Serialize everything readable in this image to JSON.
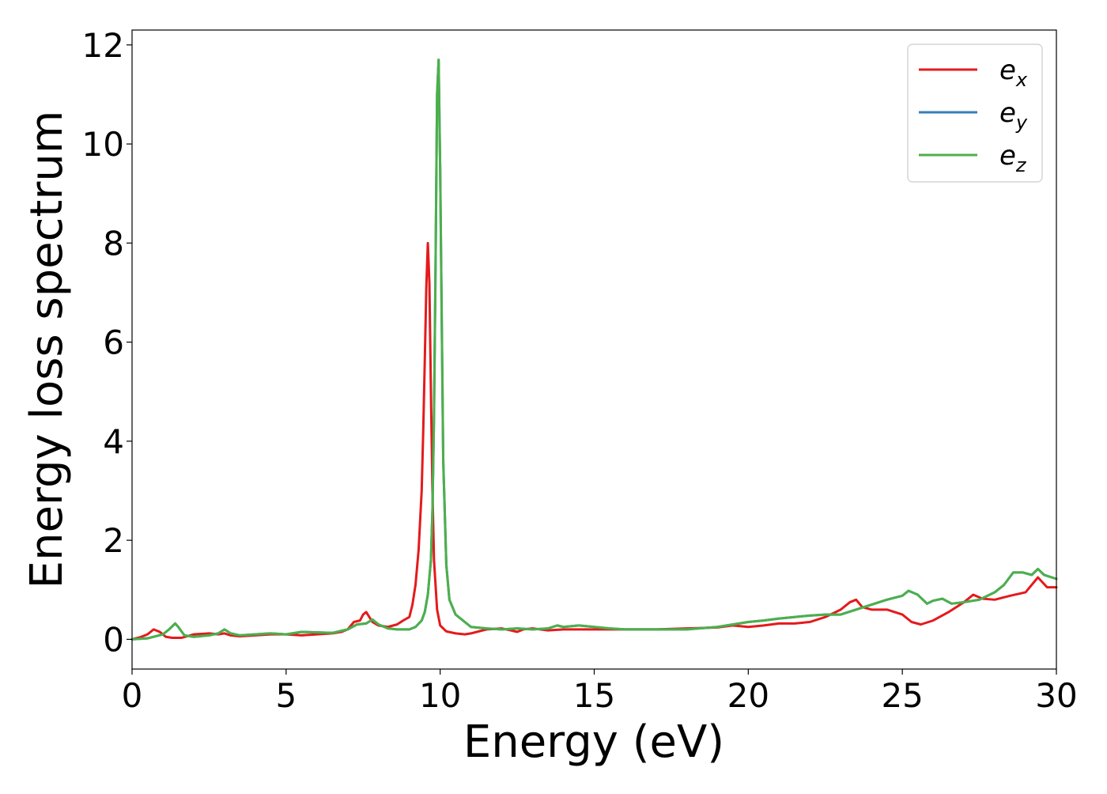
{
  "chart_data": {
    "type": "line",
    "title": "",
    "xlabel": "Energy (eV)",
    "ylabel": "Energy loss spectrum",
    "xlim": [
      0,
      30
    ],
    "ylim": [
      -0.6,
      12.3
    ],
    "xticks": [
      0,
      5,
      10,
      15,
      20,
      25,
      30
    ],
    "yticks": [
      0,
      2,
      4,
      6,
      8,
      10,
      12
    ],
    "xtick_labels": [
      "0",
      "5",
      "10",
      "15",
      "20",
      "25",
      "30"
    ],
    "ytick_labels": [
      "0",
      "2",
      "4",
      "6",
      "8",
      "10",
      "12"
    ],
    "grid": false,
    "legend_position": "top-right",
    "series": [
      {
        "name": "e_x",
        "label_main": "e",
        "label_sub": "x",
        "color": "#e41a1c",
        "x": [
          0,
          0.3,
          0.5,
          0.7,
          0.9,
          1.1,
          1.3,
          1.6,
          2.0,
          2.5,
          2.8,
          3.0,
          3.2,
          3.5,
          4.0,
          4.5,
          5.0,
          5.5,
          6.0,
          6.5,
          6.8,
          7.0,
          7.2,
          7.4,
          7.5,
          7.6,
          7.8,
          8.0,
          8.3,
          8.6,
          8.8,
          9.0,
          9.1,
          9.2,
          9.3,
          9.4,
          9.45,
          9.5,
          9.55,
          9.6,
          9.65,
          9.7,
          9.75,
          9.8,
          9.9,
          10.0,
          10.2,
          10.5,
          10.8,
          11.0,
          11.5,
          12.0,
          12.3,
          12.5,
          12.7,
          13.0,
          13.5,
          14.0,
          15.0,
          16.0,
          17.0,
          18.0,
          19.0,
          19.5,
          20.0,
          20.5,
          21.0,
          21.5,
          22.0,
          22.5,
          23.0,
          23.3,
          23.5,
          23.7,
          24.0,
          24.5,
          25.0,
          25.3,
          25.6,
          26.0,
          26.5,
          27.0,
          27.3,
          27.6,
          28.0,
          28.5,
          29.0,
          29.4,
          29.7,
          30.0
        ],
        "values": [
          0,
          0.05,
          0.1,
          0.2,
          0.15,
          0.05,
          0.03,
          0.03,
          0.1,
          0.12,
          0.1,
          0.12,
          0.08,
          0.06,
          0.08,
          0.1,
          0.1,
          0.08,
          0.1,
          0.12,
          0.15,
          0.2,
          0.35,
          0.38,
          0.5,
          0.55,
          0.35,
          0.28,
          0.25,
          0.3,
          0.38,
          0.45,
          0.7,
          1.1,
          1.8,
          3.0,
          4.2,
          5.6,
          7.1,
          8.0,
          7.2,
          5.0,
          3.0,
          1.6,
          0.6,
          0.28,
          0.16,
          0.12,
          0.1,
          0.12,
          0.2,
          0.22,
          0.18,
          0.15,
          0.2,
          0.22,
          0.18,
          0.2,
          0.2,
          0.2,
          0.2,
          0.22,
          0.24,
          0.28,
          0.25,
          0.28,
          0.32,
          0.32,
          0.35,
          0.45,
          0.6,
          0.75,
          0.8,
          0.65,
          0.6,
          0.6,
          0.5,
          0.35,
          0.3,
          0.38,
          0.55,
          0.75,
          0.9,
          0.82,
          0.8,
          0.88,
          0.95,
          1.25,
          1.05,
          1.05
        ]
      },
      {
        "name": "e_y",
        "label_main": "e",
        "label_sub": "y",
        "color": "#377eb8",
        "x": [
          0,
          0.5,
          1.0,
          1.2,
          1.4,
          1.5,
          1.7,
          2.0,
          2.5,
          2.8,
          3.0,
          3.2,
          3.5,
          4.0,
          4.5,
          5.0,
          5.5,
          6.0,
          6.5,
          7.0,
          7.3,
          7.6,
          7.8,
          8.0,
          8.3,
          8.6,
          9.0,
          9.2,
          9.4,
          9.5,
          9.6,
          9.7,
          9.75,
          9.8,
          9.85,
          9.9,
          9.95,
          10.0,
          10.05,
          10.1,
          10.2,
          10.3,
          10.5,
          10.8,
          11.0,
          11.5,
          12.0,
          12.5,
          13.0,
          13.5,
          13.8,
          14.0,
          14.5,
          15.0,
          15.5,
          16.0,
          16.5,
          17.0,
          18.0,
          19.0,
          20.0,
          20.5,
          21.0,
          21.5,
          22.0,
          22.5,
          23.0,
          23.5,
          24.0,
          24.5,
          25.0,
          25.2,
          25.5,
          25.8,
          26.0,
          26.3,
          26.6,
          27.0,
          27.5,
          28.0,
          28.3,
          28.6,
          28.9,
          29.2,
          29.4,
          29.6,
          30.0
        ],
        "values": [
          0,
          0.02,
          0.1,
          0.2,
          0.32,
          0.25,
          0.08,
          0.05,
          0.08,
          0.12,
          0.2,
          0.12,
          0.08,
          0.1,
          0.12,
          0.1,
          0.15,
          0.14,
          0.13,
          0.2,
          0.3,
          0.32,
          0.4,
          0.3,
          0.22,
          0.2,
          0.2,
          0.25,
          0.38,
          0.55,
          0.9,
          1.6,
          2.6,
          4.5,
          7.5,
          11.0,
          11.7,
          9.5,
          6.5,
          3.6,
          1.5,
          0.8,
          0.5,
          0.35,
          0.25,
          0.22,
          0.2,
          0.22,
          0.2,
          0.22,
          0.28,
          0.25,
          0.28,
          0.25,
          0.22,
          0.2,
          0.2,
          0.2,
          0.2,
          0.25,
          0.35,
          0.38,
          0.42,
          0.45,
          0.48,
          0.5,
          0.5,
          0.6,
          0.7,
          0.8,
          0.88,
          0.98,
          0.9,
          0.72,
          0.78,
          0.82,
          0.72,
          0.75,
          0.8,
          0.95,
          1.1,
          1.35,
          1.35,
          1.3,
          1.42,
          1.3,
          1.22
        ]
      },
      {
        "name": "e_z",
        "label_main": "e",
        "label_sub": "z",
        "color": "#4daf4a",
        "x": [
          0,
          0.5,
          1.0,
          1.2,
          1.4,
          1.5,
          1.7,
          2.0,
          2.5,
          2.8,
          3.0,
          3.2,
          3.5,
          4.0,
          4.5,
          5.0,
          5.5,
          6.0,
          6.5,
          7.0,
          7.3,
          7.6,
          7.8,
          8.0,
          8.3,
          8.6,
          9.0,
          9.2,
          9.4,
          9.5,
          9.6,
          9.7,
          9.75,
          9.8,
          9.85,
          9.9,
          9.95,
          10.0,
          10.05,
          10.1,
          10.2,
          10.3,
          10.5,
          10.8,
          11.0,
          11.5,
          12.0,
          12.5,
          13.0,
          13.5,
          13.8,
          14.0,
          14.5,
          15.0,
          15.5,
          16.0,
          16.5,
          17.0,
          18.0,
          19.0,
          20.0,
          20.5,
          21.0,
          21.5,
          22.0,
          22.5,
          23.0,
          23.5,
          24.0,
          24.5,
          25.0,
          25.2,
          25.5,
          25.8,
          26.0,
          26.3,
          26.6,
          27.0,
          27.5,
          28.0,
          28.3,
          28.6,
          28.9,
          29.2,
          29.4,
          29.6,
          30.0
        ],
        "values": [
          0,
          0.02,
          0.1,
          0.2,
          0.32,
          0.25,
          0.08,
          0.05,
          0.08,
          0.12,
          0.2,
          0.12,
          0.08,
          0.1,
          0.12,
          0.1,
          0.15,
          0.14,
          0.13,
          0.2,
          0.3,
          0.32,
          0.4,
          0.3,
          0.22,
          0.2,
          0.2,
          0.25,
          0.38,
          0.55,
          0.9,
          1.6,
          2.6,
          4.5,
          7.5,
          11.0,
          11.7,
          9.5,
          6.5,
          3.6,
          1.5,
          0.8,
          0.5,
          0.35,
          0.25,
          0.22,
          0.2,
          0.22,
          0.2,
          0.22,
          0.28,
          0.25,
          0.28,
          0.25,
          0.22,
          0.2,
          0.2,
          0.2,
          0.2,
          0.25,
          0.35,
          0.38,
          0.42,
          0.45,
          0.48,
          0.5,
          0.5,
          0.6,
          0.7,
          0.8,
          0.88,
          0.98,
          0.9,
          0.72,
          0.78,
          0.82,
          0.72,
          0.75,
          0.8,
          0.95,
          1.1,
          1.35,
          1.35,
          1.3,
          1.42,
          1.3,
          1.22
        ]
      }
    ]
  }
}
